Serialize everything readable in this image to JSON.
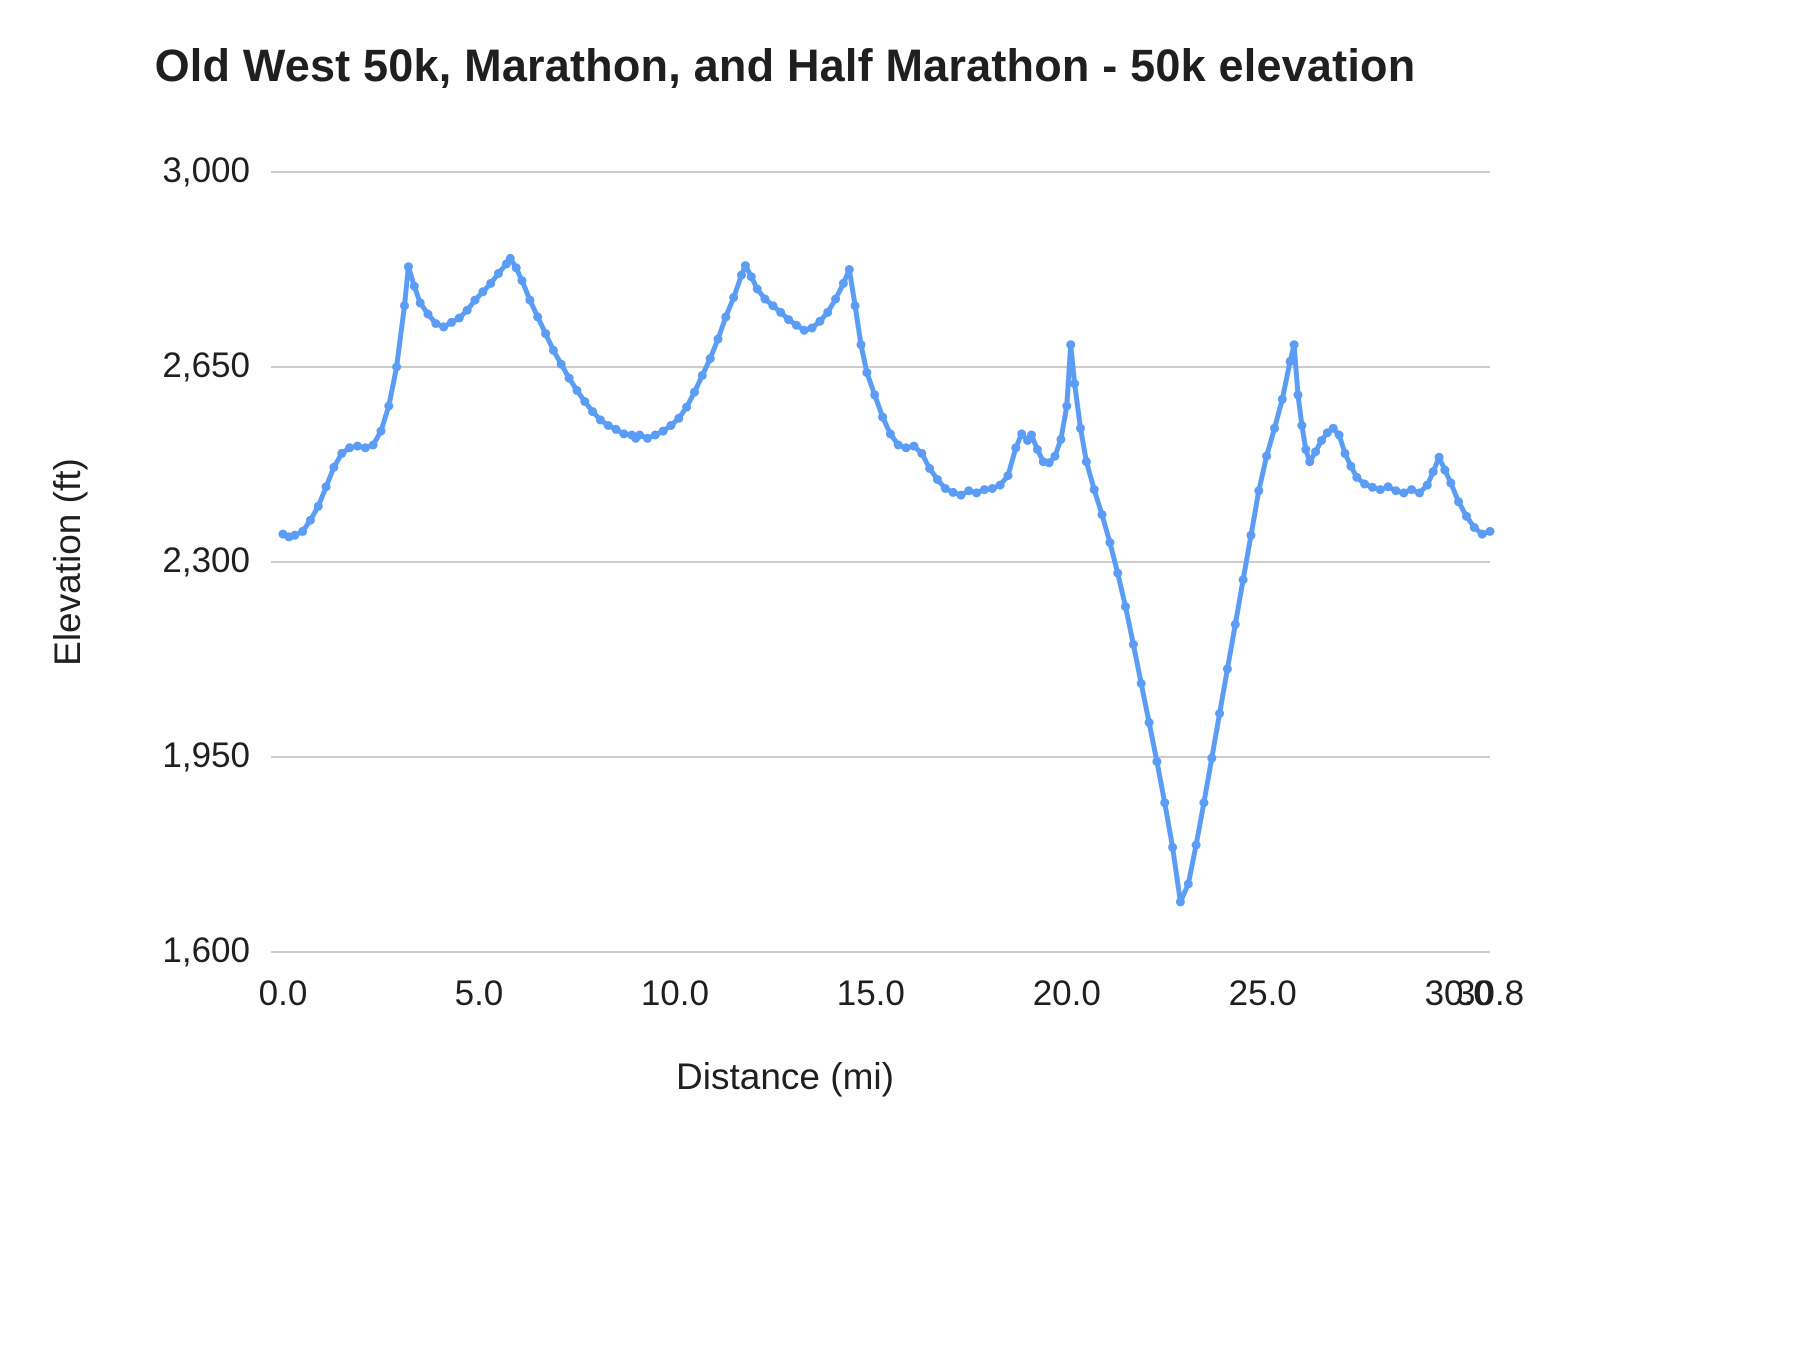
{
  "chart_data": {
    "type": "line",
    "title": "Old West 50k, Marathon, and Half Marathon - 50k elevation",
    "xlabel": "Distance (mi)",
    "ylabel": "Elevation (ft)",
    "xlim": [
      0,
      30.8
    ],
    "ylim": [
      1600,
      3000
    ],
    "grid": true,
    "legend": "none",
    "line_color": "#5b9cf5",
    "grid_color": "#cccccc",
    "text_color": "#1f1f1f",
    "y_ticks": [
      {
        "value": 3000,
        "label": "3,000"
      },
      {
        "value": 2650,
        "label": "2,650"
      },
      {
        "value": 2300,
        "label": "2,300"
      },
      {
        "value": 1950,
        "label": "1,950"
      },
      {
        "value": 1600,
        "label": "1,600"
      }
    ],
    "x_ticks": [
      {
        "value": 0.0,
        "label": "0.0"
      },
      {
        "value": 5.0,
        "label": "5.0"
      },
      {
        "value": 10.0,
        "label": "10.0"
      },
      {
        "value": 15.0,
        "label": "15.0"
      },
      {
        "value": 20.0,
        "label": "20.0"
      },
      {
        "value": 25.0,
        "label": "25.0"
      },
      {
        "value": 30.0,
        "label": "30.0"
      },
      {
        "value": 30.8,
        "label": "30.8"
      }
    ],
    "series": [
      {
        "name": "50k elevation",
        "x": [
          0,
          0.15,
          0.3,
          0.5,
          0.7,
          0.9,
          1.1,
          1.3,
          1.5,
          1.7,
          1.9,
          2.1,
          2.3,
          2.5,
          2.7,
          2.9,
          3.1,
          3.2,
          3.35,
          3.5,
          3.7,
          3.9,
          4.1,
          4.3,
          4.5,
          4.7,
          4.9,
          5.1,
          5.3,
          5.5,
          5.7,
          5.8,
          5.95,
          6.1,
          6.3,
          6.5,
          6.7,
          6.9,
          7.1,
          7.3,
          7.5,
          7.7,
          7.9,
          8.1,
          8.3,
          8.5,
          8.7,
          8.9,
          9.0,
          9.1,
          9.3,
          9.5,
          9.7,
          9.9,
          10.1,
          10.3,
          10.5,
          10.7,
          10.9,
          11.1,
          11.3,
          11.5,
          11.7,
          11.8,
          11.95,
          12.1,
          12.3,
          12.5,
          12.7,
          12.9,
          13.1,
          13.3,
          13.5,
          13.7,
          13.9,
          14.1,
          14.3,
          14.45,
          14.6,
          14.75,
          14.9,
          15.1,
          15.3,
          15.5,
          15.7,
          15.9,
          16.1,
          16.3,
          16.5,
          16.7,
          16.9,
          17.1,
          17.3,
          17.5,
          17.7,
          17.9,
          18.1,
          18.3,
          18.5,
          18.7,
          18.85,
          19.0,
          19.1,
          19.25,
          19.4,
          19.55,
          19.7,
          19.85,
          20.0,
          20.1,
          20.2,
          20.35,
          20.5,
          20.7,
          20.9,
          21.1,
          21.3,
          21.5,
          21.7,
          21.9,
          22.1,
          22.3,
          22.5,
          22.7,
          22.9,
          23.1,
          23.3,
          23.5,
          23.7,
          23.9,
          24.1,
          24.3,
          24.5,
          24.7,
          24.9,
          25.1,
          25.3,
          25.5,
          25.7,
          25.8,
          25.9,
          26.0,
          26.1,
          26.2,
          26.35,
          26.5,
          26.65,
          26.8,
          26.95,
          27.1,
          27.25,
          27.4,
          27.6,
          27.8,
          28.0,
          28.2,
          28.4,
          28.6,
          28.8,
          29.0,
          29.2,
          29.35,
          29.5,
          29.65,
          29.8,
          30.0,
          30.2,
          30.4,
          30.6,
          30.8
        ],
        "y": [
          2350,
          2345,
          2348,
          2355,
          2375,
          2400,
          2435,
          2470,
          2495,
          2505,
          2508,
          2505,
          2510,
          2535,
          2580,
          2650,
          2760,
          2830,
          2795,
          2765,
          2745,
          2728,
          2722,
          2730,
          2738,
          2752,
          2770,
          2785,
          2800,
          2818,
          2835,
          2845,
          2828,
          2805,
          2770,
          2740,
          2710,
          2680,
          2655,
          2630,
          2608,
          2588,
          2570,
          2555,
          2545,
          2538,
          2530,
          2528,
          2522,
          2528,
          2522,
          2528,
          2535,
          2545,
          2558,
          2578,
          2605,
          2635,
          2665,
          2700,
          2740,
          2775,
          2815,
          2832,
          2812,
          2790,
          2772,
          2760,
          2748,
          2735,
          2725,
          2716,
          2720,
          2732,
          2748,
          2772,
          2800,
          2825,
          2760,
          2690,
          2640,
          2600,
          2560,
          2530,
          2510,
          2505,
          2508,
          2495,
          2468,
          2448,
          2432,
          2425,
          2420,
          2428,
          2424,
          2430,
          2432,
          2438,
          2455,
          2505,
          2530,
          2518,
          2528,
          2502,
          2480,
          2478,
          2490,
          2520,
          2580,
          2690,
          2620,
          2540,
          2480,
          2430,
          2385,
          2335,
          2280,
          2220,
          2152,
          2082,
          2012,
          1942,
          1868,
          1788,
          1690,
          1722,
          1792,
          1868,
          1948,
          2028,
          2108,
          2188,
          2268,
          2348,
          2428,
          2490,
          2540,
          2592,
          2660,
          2690,
          2600,
          2545,
          2502,
          2480,
          2498,
          2518,
          2532,
          2540,
          2528,
          2495,
          2472,
          2452,
          2440,
          2434,
          2430,
          2435,
          2428,
          2424,
          2430,
          2424,
          2438,
          2462,
          2488,
          2465,
          2442,
          2408,
          2382,
          2362,
          2350,
          2355
        ]
      }
    ]
  }
}
